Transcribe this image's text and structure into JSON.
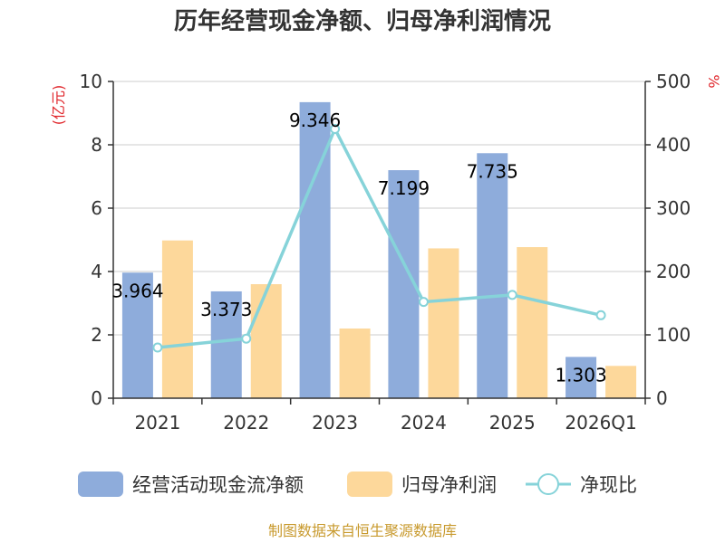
{
  "chart_data": {
    "type": "bar",
    "title": "历年经营现金净额、归母净利润情况",
    "categories": [
      "2021",
      "2022",
      "2023",
      "2024",
      "2025",
      "2026Q1"
    ],
    "y_left": {
      "unit": "(亿元)",
      "ylim": [
        0,
        10
      ],
      "ticks": [
        0,
        2,
        4,
        6,
        8,
        10
      ]
    },
    "y_right": {
      "unit": "%",
      "ylim": [
        0,
        500
      ],
      "ticks": [
        0,
        100,
        200,
        300,
        400,
        500
      ]
    },
    "series": [
      {
        "name": "经营活动现金流净额",
        "kind": "bar",
        "axis": "left",
        "color": "#8eacdb",
        "values": [
          3.964,
          3.373,
          9.346,
          7.199,
          7.735,
          1.303
        ],
        "labels": [
          "3.964",
          "3.373",
          "9.346",
          "7.199",
          "7.735",
          "1.303"
        ]
      },
      {
        "name": "归母净利润",
        "kind": "bar",
        "axis": "left",
        "color": "#fdd89b",
        "values": [
          4.98,
          3.6,
          2.2,
          4.73,
          4.77,
          1.02
        ]
      },
      {
        "name": "净现比",
        "kind": "line",
        "axis": "right",
        "color": "#86d3d9",
        "values": [
          80,
          94,
          425,
          152,
          163,
          131
        ]
      }
    ],
    "source": "制图数据来自恒生聚源数据库"
  }
}
